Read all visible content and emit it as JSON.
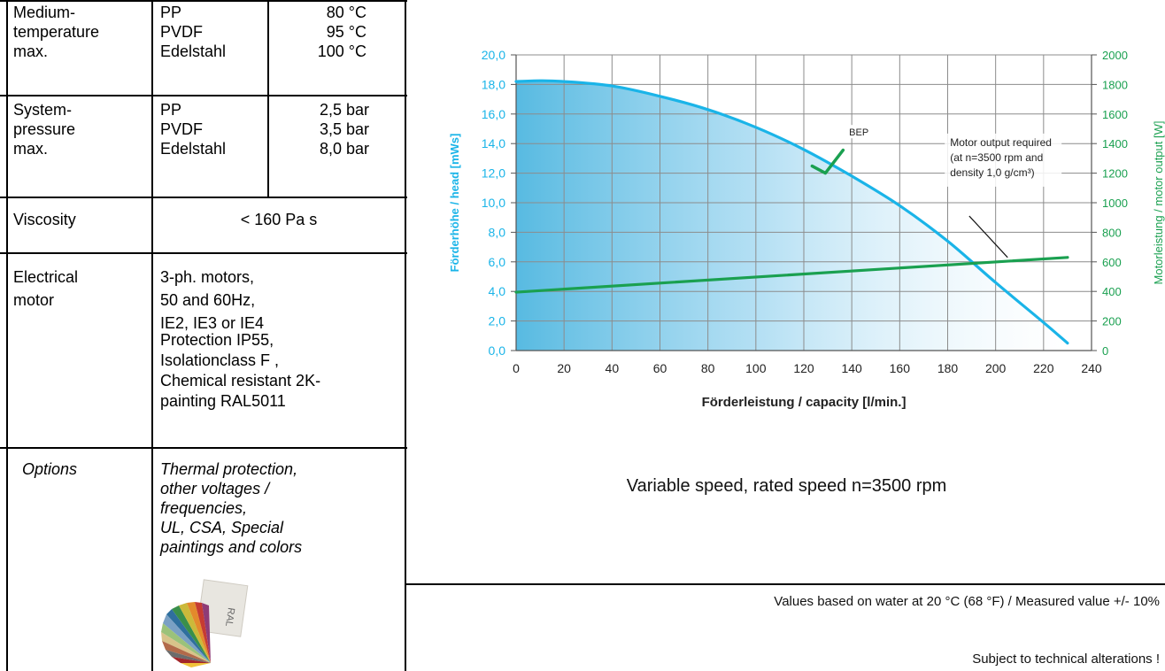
{
  "table": {
    "rows": [
      {
        "label": [
          "Medium-",
          "temperature",
          "max."
        ],
        "materials": [
          "PP",
          "PVDF",
          "Edelstahl"
        ],
        "values": [
          "80 °C",
          "95 °C",
          "100 °C"
        ]
      },
      {
        "label": [
          "System-",
          "pressure",
          "max."
        ],
        "materials": [
          "PP",
          "PVDF",
          "Edelstahl"
        ],
        "values": [
          "2,5 bar",
          "3,5 bar",
          "8,0 bar"
        ]
      },
      {
        "label": [
          "Viscosity"
        ],
        "value": "< 160 Pa s"
      },
      {
        "label": [
          "Electrical",
          "motor"
        ],
        "value_lines": [
          "3-ph. motors,",
          "50 and 60Hz,",
          "IE2, IE3 or IE4",
          "Protection IP55,",
          "Isolationclass F ,",
          "Chemical resistant 2K-",
          "painting RAL5011"
        ]
      },
      {
        "label": [
          "Options"
        ],
        "value_lines": [
          "Thermal protection,",
          "other voltages /",
          "frequencies,",
          "UL, CSA, Special",
          "paintings and colors"
        ]
      }
    ],
    "fan_label": "RAL"
  },
  "chart_data": {
    "type": "line",
    "xlabel": "Förderleistung / capacity  [l/min.]",
    "ylabel": "Förderhöhe / head  [mWs]",
    "y2label": "Motorleistung / motor output [W]",
    "xlim": [
      0,
      240
    ],
    "ylim": [
      0,
      20
    ],
    "y2lim": [
      0,
      2000
    ],
    "x_ticks": [
      "0",
      "20",
      "40",
      "60",
      "80",
      "100",
      "120",
      "140",
      "160",
      "180",
      "200",
      "220",
      "240"
    ],
    "y_ticks": [
      "0,0",
      "2,0",
      "4,0",
      "6,0",
      "8,0",
      "10,0",
      "12,0",
      "14,0",
      "16,0",
      "18,0",
      "20,0"
    ],
    "y2_ticks": [
      "0",
      "200",
      "400",
      "600",
      "800",
      "1000",
      "1200",
      "1400",
      "1600",
      "1800",
      "2000"
    ],
    "grid": true,
    "series": [
      {
        "name": "head",
        "axis": "left",
        "color": "#1ab4e8",
        "x": [
          0,
          10,
          20,
          40,
          60,
          80,
          100,
          120,
          140,
          160,
          180,
          200,
          220,
          230
        ],
        "y": [
          18.2,
          18.25,
          18.2,
          17.9,
          17.2,
          16.3,
          15.1,
          13.6,
          11.8,
          9.8,
          7.4,
          4.6,
          1.9,
          0.5
        ]
      },
      {
        "name": "motor output",
        "axis": "right",
        "color": "#1aa050",
        "x": [
          0,
          230
        ],
        "y": [
          395,
          630
        ]
      }
    ],
    "annotations": {
      "bep": "BEP",
      "motor_note": [
        "Motor output required",
        "(at n=3500 rpm and",
        "density 1,0 g/cm³)"
      ]
    }
  },
  "caption": "Variable speed, rated speed  n=3500 rpm",
  "notes": {
    "line1": "Values based on water at 20 °C   (68 °F)  /  Measured value  +/- 10%",
    "line2": "Subject to technical alterations !"
  },
  "colors": {
    "head": "#1ab4e8",
    "motor": "#1aa050",
    "check": "#1aa050"
  }
}
